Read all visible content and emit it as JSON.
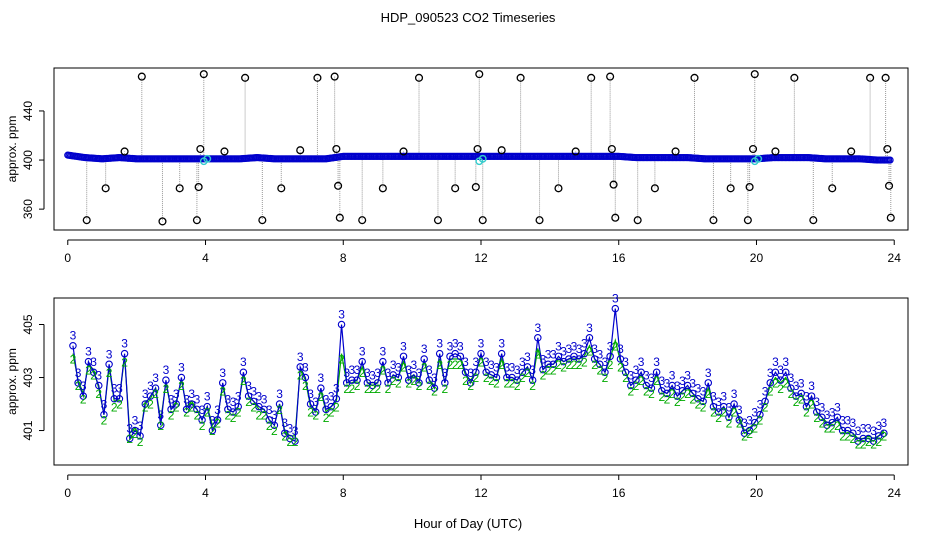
{
  "title": "HDP_090523  CO2 Timeseries",
  "xlabel": "Hour of Day (UTC)",
  "chart_data": [
    {
      "type": "scatter",
      "panel": "top",
      "title": "HDP_090523  CO2 Timeseries",
      "xlabel": "",
      "ylabel": "approx. ppm",
      "xlim": [
        -0.4,
        24.4
      ],
      "ylim": [
        343,
        475
      ],
      "xticks": [
        0,
        4,
        8,
        12,
        16,
        20,
        24
      ],
      "yticks": [
        360,
        400,
        440
      ],
      "grid": false,
      "baseline": {
        "name": "",
        "color": "#0000cc",
        "x": [
          0,
          0.5,
          1,
          1.5,
          2,
          2.5,
          3,
          3.5,
          4,
          4.5,
          5,
          5.5,
          6,
          6.5,
          7,
          7.5,
          8,
          8.5,
          9,
          9.5,
          10,
          10.5,
          11,
          11.5,
          12,
          12.5,
          13,
          13.5,
          14,
          14.5,
          15,
          15.5,
          16,
          16.5,
          17,
          17.5,
          18,
          18.5,
          19,
          19.5,
          20,
          20.5,
          21,
          21.5,
          22,
          22.5,
          23,
          23.5,
          23.9
        ],
        "y": [
          404,
          402,
          401,
          402,
          401,
          401,
          401,
          401,
          401,
          401,
          401,
          402,
          401,
          401,
          401,
          401,
          403,
          403,
          403,
          403,
          403,
          403,
          403,
          403,
          403,
          403,
          403,
          403,
          403,
          403,
          403,
          403,
          403,
          402,
          402,
          402,
          402,
          401,
          401,
          401,
          401,
          402,
          402,
          402,
          401,
          401,
          401,
          400,
          400
        ]
      },
      "cyan_points": {
        "color": "#33cccc",
        "x": [
          3.95,
          4.05,
          11.95,
          12.05,
          19.95,
          20.05
        ],
        "y": [
          399,
          401,
          399,
          401,
          399,
          401
        ]
      },
      "outliers": {
        "color": "#000000",
        "x": [
          0.55,
          1.1,
          1.65,
          2.15,
          2.75,
          3.25,
          3.75,
          3.8,
          3.85,
          3.95,
          4.55,
          5.15,
          5.65,
          6.2,
          6.75,
          7.25,
          7.75,
          7.8,
          7.85,
          7.9,
          8.55,
          9.15,
          9.75,
          10.2,
          10.75,
          11.25,
          11.85,
          11.9,
          11.95,
          12.05,
          12.6,
          13.15,
          13.7,
          14.25,
          14.75,
          15.2,
          15.75,
          15.8,
          15.85,
          15.9,
          16.55,
          17.05,
          17.65,
          18.2,
          18.75,
          19.25,
          19.75,
          19.8,
          19.9,
          19.95,
          20.55,
          21.1,
          21.65,
          22.2,
          22.75,
          23.3,
          23.75,
          23.8,
          23.85,
          23.9
        ],
        "y": [
          351,
          377,
          407,
          468,
          350,
          377,
          351,
          378,
          409,
          470,
          407,
          467,
          351,
          377,
          408,
          467,
          468,
          409,
          379,
          353,
          351,
          377,
          407,
          467,
          351,
          377,
          378,
          409,
          470,
          351,
          408,
          467,
          351,
          377,
          407,
          467,
          468,
          409,
          380,
          353,
          351,
          377,
          407,
          467,
          351,
          377,
          351,
          378,
          409,
          470,
          407,
          467,
          351,
          377,
          407,
          467,
          467,
          409,
          379,
          353
        ]
      },
      "legend": ""
    },
    {
      "type": "line",
      "panel": "bottom",
      "title": "",
      "xlabel": "Hour of Day (UTC)",
      "ylabel": "approx. ppm",
      "xlim": [
        -0.4,
        24.4
      ],
      "ylim": [
        399.7,
        406.0
      ],
      "xticks": [
        0,
        4,
        8,
        12,
        16,
        20,
        24
      ],
      "yticks": [
        401,
        403,
        405
      ],
      "grid": false,
      "series": [
        {
          "name": "3",
          "color": "#0000cc",
          "marker": "3",
          "x": [
            0.15,
            0.3,
            0.45,
            0.6,
            0.75,
            0.9,
            1.05,
            1.2,
            1.35,
            1.5,
            1.65,
            1.8,
            1.95,
            2.1,
            2.25,
            2.4,
            2.55,
            2.7,
            2.85,
            3.0,
            3.15,
            3.3,
            3.45,
            3.6,
            3.75,
            3.9,
            4.05,
            4.2,
            4.35,
            4.5,
            4.65,
            4.8,
            4.95,
            5.1,
            5.25,
            5.4,
            5.55,
            5.7,
            5.85,
            6.0,
            6.15,
            6.3,
            6.45,
            6.6,
            6.75,
            6.9,
            7.05,
            7.2,
            7.35,
            7.5,
            7.65,
            7.8,
            7.95,
            8.1,
            8.25,
            8.4,
            8.55,
            8.7,
            8.85,
            9.0,
            9.15,
            9.3,
            9.45,
            9.6,
            9.75,
            9.9,
            10.05,
            10.2,
            10.35,
            10.5,
            10.65,
            10.8,
            10.95,
            11.1,
            11.25,
            11.4,
            11.55,
            11.7,
            11.85,
            12.0,
            12.15,
            12.3,
            12.45,
            12.6,
            12.75,
            12.9,
            13.05,
            13.2,
            13.35,
            13.5,
            13.65,
            13.8,
            13.95,
            14.1,
            14.25,
            14.4,
            14.55,
            14.7,
            14.85,
            15.0,
            15.15,
            15.3,
            15.45,
            15.6,
            15.75,
            15.9,
            16.05,
            16.2,
            16.35,
            16.5,
            16.65,
            16.8,
            16.95,
            17.1,
            17.25,
            17.4,
            17.55,
            17.7,
            17.85,
            18.0,
            18.15,
            18.3,
            18.45,
            18.6,
            18.75,
            18.9,
            19.05,
            19.2,
            19.35,
            19.5,
            19.65,
            19.8,
            19.95,
            20.1,
            20.25,
            20.4,
            20.55,
            20.7,
            20.85,
            21.0,
            21.15,
            21.3,
            21.45,
            21.6,
            21.75,
            21.9,
            22.05,
            22.2,
            22.35,
            22.5,
            22.65,
            22.8,
            22.95,
            23.1,
            23.25,
            23.4,
            23.55,
            23.7
          ],
          "values": [
            404.2,
            402.8,
            402.3,
            403.6,
            403.2,
            402.7,
            401.6,
            403.5,
            402.2,
            402.2,
            403.9,
            400.7,
            401.0,
            400.8,
            402.0,
            402.3,
            402.6,
            401.2,
            402.9,
            401.8,
            402.0,
            403.0,
            401.8,
            402.0,
            401.8,
            401.4,
            401.9,
            401.0,
            401.4,
            402.8,
            401.8,
            401.7,
            401.9,
            403.2,
            402.3,
            402.1,
            401.9,
            401.8,
            401.4,
            401.2,
            402.0,
            400.9,
            400.7,
            400.6,
            403.4,
            403.0,
            402.0,
            401.7,
            402.6,
            401.8,
            401.9,
            402.2,
            405.0,
            402.8,
            402.9,
            402.9,
            403.6,
            402.8,
            402.7,
            402.8,
            403.6,
            402.8,
            403.1,
            403.0,
            403.8,
            402.9,
            403.1,
            402.8,
            403.7,
            402.9,
            402.6,
            403.9,
            402.8,
            403.8,
            403.9,
            403.8,
            403.2,
            402.8,
            403.2,
            403.9,
            403.2,
            403.1,
            403.0,
            403.9,
            403.0,
            403.0,
            402.9,
            403.2,
            403.4,
            402.9,
            404.5,
            403.3,
            403.5,
            403.5,
            403.8,
            403.6,
            403.7,
            403.8,
            403.7,
            403.9,
            404.5,
            403.7,
            403.5,
            403.2,
            403.8,
            405.6,
            403.7,
            403.2,
            402.7,
            402.9,
            403.2,
            402.7,
            402.6,
            403.2,
            402.5,
            402.4,
            402.7,
            402.3,
            402.5,
            402.7,
            402.4,
            402.2,
            402.1,
            402.8,
            401.9,
            401.7,
            401.9,
            401.5,
            402.0,
            401.4,
            400.9,
            401.0,
            401.3,
            401.6,
            402.1,
            402.8,
            403.2,
            402.9,
            403.2,
            402.6,
            402.3,
            402.4,
            401.9,
            402.3,
            401.7,
            401.5,
            401.2,
            401.3,
            401.5,
            401.0,
            401.0,
            400.9,
            400.6,
            400.7,
            400.7,
            400.6,
            400.8,
            400.9
          ]
        },
        {
          "name": "2",
          "color": "#00aa00",
          "marker": "2",
          "x": [
            0.15,
            0.3,
            0.45,
            0.6,
            0.75,
            0.9,
            1.05,
            1.2,
            1.35,
            1.5,
            1.65,
            1.8,
            1.95,
            2.1,
            2.25,
            2.4,
            2.55,
            2.7,
            2.85,
            3.0,
            3.15,
            3.3,
            3.45,
            3.6,
            3.75,
            3.9,
            4.05,
            4.2,
            4.35,
            4.5,
            4.65,
            4.8,
            4.95,
            5.1,
            5.25,
            5.4,
            5.55,
            5.7,
            5.85,
            6.0,
            6.15,
            6.3,
            6.45,
            6.6,
            6.75,
            6.9,
            7.05,
            7.2,
            7.35,
            7.5,
            7.65,
            7.8,
            7.95,
            8.1,
            8.25,
            8.4,
            8.55,
            8.7,
            8.85,
            9.0,
            9.15,
            9.3,
            9.45,
            9.6,
            9.75,
            9.9,
            10.05,
            10.2,
            10.35,
            10.5,
            10.65,
            10.8,
            10.95,
            11.1,
            11.25,
            11.4,
            11.55,
            11.7,
            11.85,
            12.0,
            12.15,
            12.3,
            12.45,
            12.6,
            12.75,
            12.9,
            13.05,
            13.2,
            13.35,
            13.5,
            13.65,
            13.8,
            13.95,
            14.1,
            14.25,
            14.4,
            14.55,
            14.7,
            14.85,
            15.0,
            15.15,
            15.3,
            15.45,
            15.6,
            15.75,
            15.9,
            16.05,
            16.2,
            16.35,
            16.5,
            16.65,
            16.8,
            16.95,
            17.1,
            17.25,
            17.4,
            17.55,
            17.7,
            17.85,
            18.0,
            18.15,
            18.3,
            18.45,
            18.6,
            18.75,
            18.9,
            19.05,
            19.2,
            19.35,
            19.5,
            19.65,
            19.8,
            19.95,
            20.1,
            20.25,
            20.4,
            20.55,
            20.7,
            20.85,
            21.0,
            21.15,
            21.3,
            21.45,
            21.6,
            21.75,
            21.9,
            22.05,
            22.2,
            22.35,
            22.5,
            22.65,
            22.8,
            22.95,
            23.1,
            23.25,
            23.4,
            23.55,
            23.7
          ],
          "values": [
            403.9,
            402.9,
            402.4,
            403.5,
            403.3,
            402.6,
            401.6,
            403.4,
            402.1,
            402.2,
            403.8,
            400.9,
            401.1,
            400.8,
            402.1,
            402.2,
            402.6,
            401.4,
            402.8,
            401.8,
            402.1,
            402.9,
            401.9,
            402.1,
            401.8,
            401.4,
            401.9,
            401.2,
            401.5,
            402.7,
            401.8,
            401.7,
            401.9,
            403.1,
            402.3,
            402.1,
            401.8,
            401.8,
            401.4,
            401.2,
            402.0,
            401.0,
            400.8,
            400.8,
            403.3,
            402.9,
            401.9,
            401.8,
            402.5,
            401.7,
            401.9,
            402.1,
            403.9,
            402.8,
            402.8,
            402.9,
            403.4,
            402.8,
            402.8,
            402.8,
            403.5,
            402.8,
            403.1,
            403.0,
            403.6,
            403.0,
            403.1,
            402.9,
            403.6,
            402.9,
            402.7,
            403.7,
            402.8,
            403.7,
            403.7,
            403.7,
            403.1,
            402.9,
            403.2,
            403.8,
            403.2,
            403.1,
            403.0,
            403.7,
            403.0,
            403.0,
            402.9,
            403.2,
            403.4,
            402.9,
            404.1,
            403.3,
            403.5,
            403.5,
            403.7,
            403.6,
            403.7,
            403.7,
            403.7,
            403.8,
            404.2,
            403.7,
            403.5,
            403.2,
            403.7,
            404.4,
            403.6,
            403.2,
            402.7,
            402.9,
            403.1,
            402.7,
            402.6,
            403.1,
            402.5,
            402.4,
            402.6,
            402.3,
            402.5,
            402.6,
            402.4,
            402.2,
            402.1,
            402.6,
            401.9,
            401.7,
            401.9,
            401.5,
            401.9,
            401.5,
            401.0,
            401.1,
            401.3,
            401.6,
            402.1,
            402.7,
            403.0,
            402.8,
            403.0,
            402.6,
            402.3,
            402.4,
            401.9,
            402.2,
            401.7,
            401.5,
            401.3,
            401.3,
            401.4,
            401.0,
            401.0,
            400.9,
            400.7,
            400.7,
            400.8,
            400.7,
            400.8,
            401.0
          ]
        }
      ],
      "legend": ""
    }
  ]
}
